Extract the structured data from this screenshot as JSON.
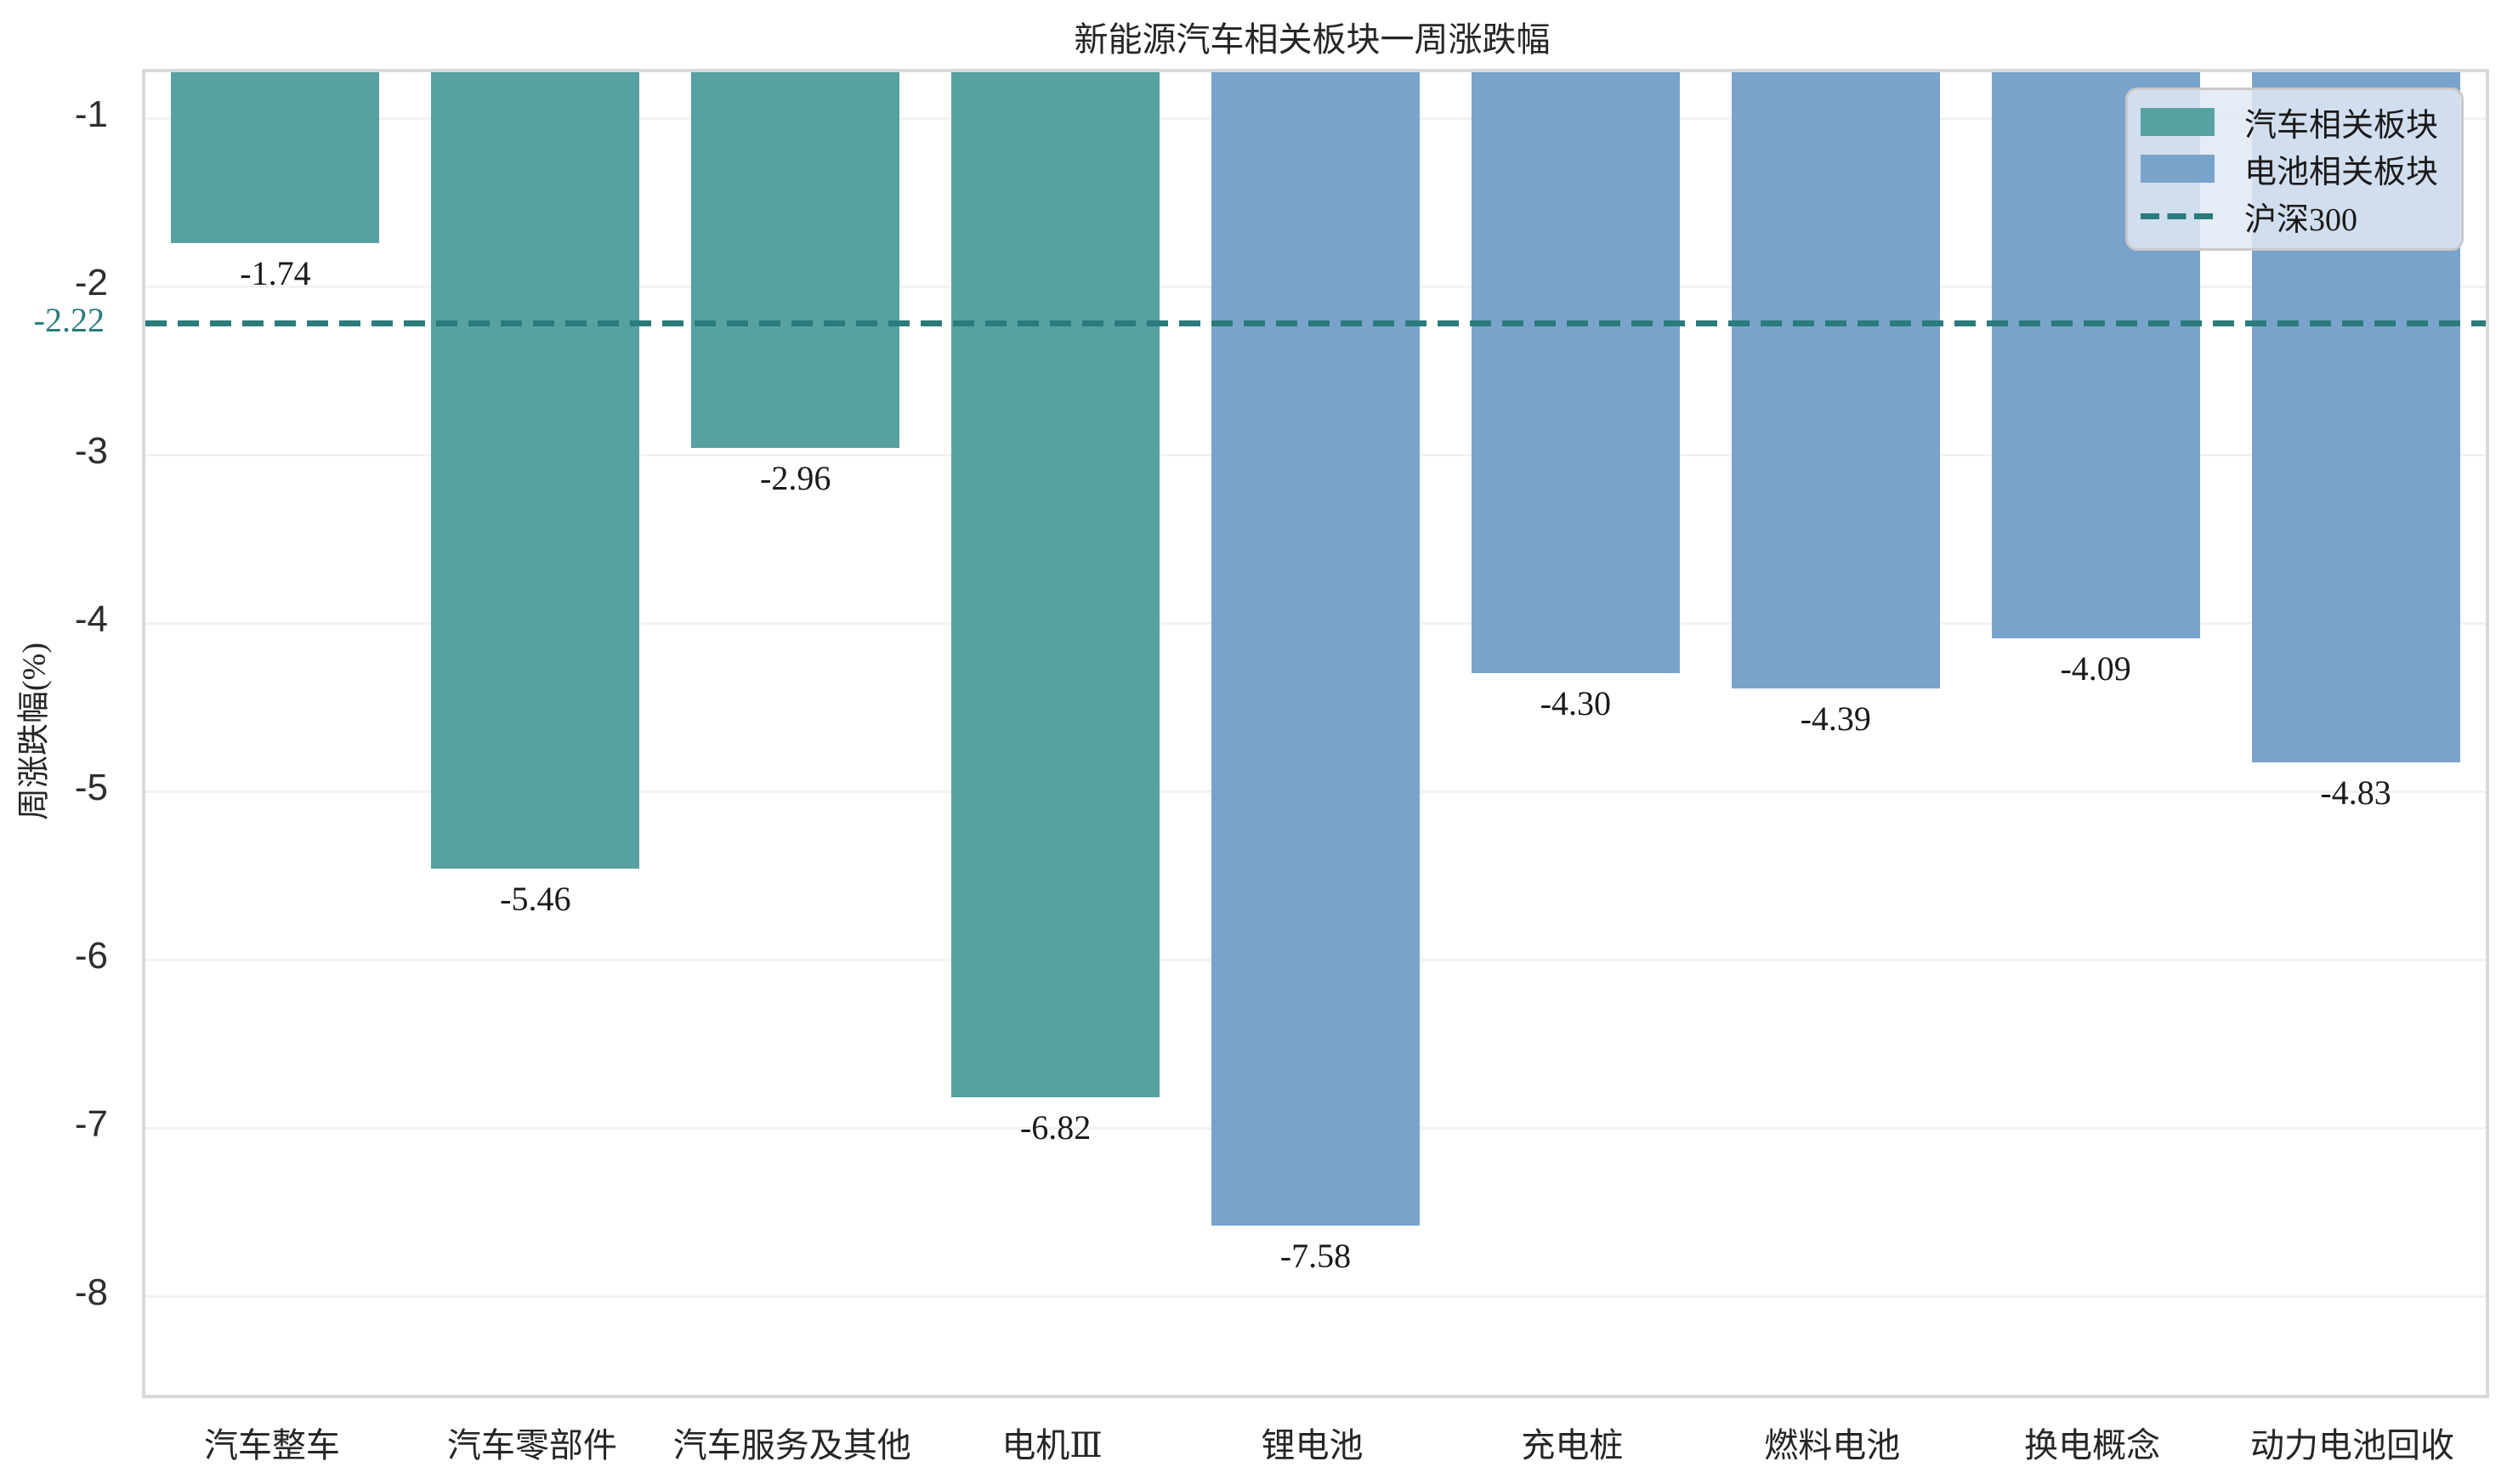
{
  "chart_data": {
    "type": "bar",
    "title": "新能源汽车相关板块一周涨跌幅",
    "ylabel": "周涨跌幅(%)",
    "xlabel": "",
    "categories": [
      "汽车整车",
      "汽车零部件",
      "汽车服务及其他",
      "电机Ⅲ",
      "锂电池",
      "充电桩",
      "燃料电池",
      "换电概念",
      "动力电池回收"
    ],
    "values": [
      -1.74,
      -5.46,
      -2.96,
      -6.82,
      -7.58,
      -4.3,
      -4.39,
      -4.09,
      -4.83
    ],
    "value_labels": [
      "-1.74",
      "-5.46",
      "-2.96",
      "-6.82",
      "-7.58",
      "-4.30",
      "-4.39",
      "-4.09",
      "-4.83"
    ],
    "bar_groups": [
      "auto",
      "auto",
      "auto",
      "auto",
      "battery",
      "battery",
      "battery",
      "battery",
      "battery"
    ],
    "group_colors": {
      "auto": "#57a1a1",
      "battery": "#7aa3cc"
    },
    "benchmark": {
      "label": "沪深300",
      "value": -2.22,
      "display": "-2.22",
      "color": "#2a7b7c",
      "style": "dashed"
    },
    "y_ticks": [
      -1,
      -2,
      -3,
      -4,
      -5,
      -6,
      -7,
      -8
    ],
    "y_tick_labels": [
      "-1",
      "-2",
      "-3",
      "-4",
      "-5",
      "-6",
      "-7",
      "-8"
    ],
    "ylim": [
      -8.59,
      -0.73
    ],
    "grid": "horizontal",
    "grid_color": "#f2f2f2",
    "spine_color": "#d9d9d9",
    "background": "#ffffff",
    "legend": {
      "position": "upper right",
      "entries": [
        {
          "label": "汽车相关板块",
          "type": "swatch",
          "color": "#57a1a1"
        },
        {
          "label": "电池相关板块",
          "type": "swatch",
          "color": "#7aa3cc"
        },
        {
          "label": "沪深300",
          "type": "dash",
          "color": "#2a7b7c"
        }
      ]
    }
  }
}
